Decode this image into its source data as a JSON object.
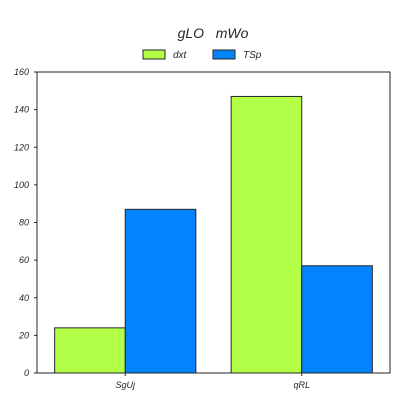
{
  "chart_data": {
    "type": "bar",
    "title": "gLO   mWo",
    "xlabel": "",
    "ylabel": "",
    "categories": [
      "SgUj",
      "qRL"
    ],
    "series": [
      {
        "name": "dxt",
        "values": [
          24,
          147
        ],
        "color": "#b3ff47"
      },
      {
        "name": "TSp",
        "values": [
          87,
          57
        ],
        "color": "#0384fc"
      }
    ],
    "ylim": [
      0,
      160
    ],
    "yticks": [
      0,
      20,
      40,
      60,
      80,
      100,
      120,
      140,
      160
    ],
    "legend_position": "top-center",
    "grid": false
  }
}
